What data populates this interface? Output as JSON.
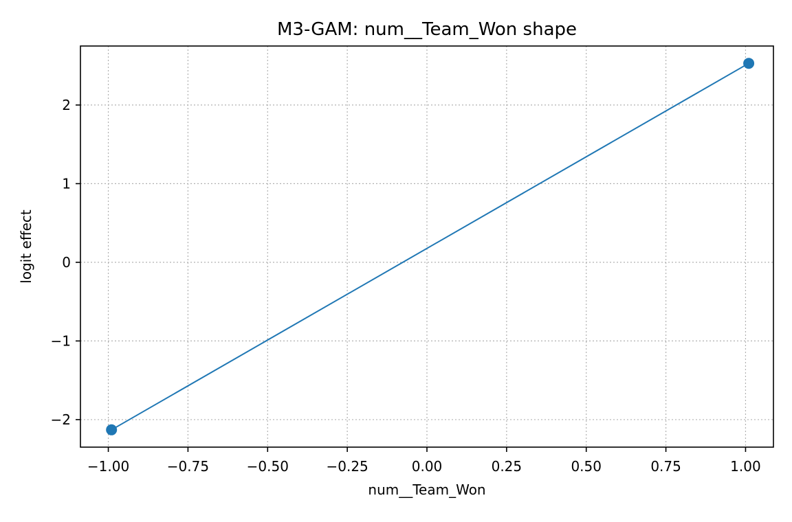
{
  "chart_data": {
    "type": "line",
    "title": "M3-GAM: num__Team_Won shape",
    "xlabel": "num__Team_Won",
    "ylabel": "logit effect",
    "xlim": [
      -1.0875,
      1.0875
    ],
    "ylim": [
      -2.35,
      2.75
    ],
    "x_ticks": [
      -1.0,
      -0.75,
      -0.5,
      -0.25,
      0.0,
      0.25,
      0.5,
      0.75,
      1.0
    ],
    "x_tick_labels": [
      "−1.00",
      "−0.75",
      "−0.50",
      "−0.25",
      "0.00",
      "0.25",
      "0.50",
      "0.75",
      "1.00"
    ],
    "y_ticks": [
      -2,
      -1,
      0,
      1,
      2
    ],
    "y_tick_labels": [
      "−2",
      "−1",
      "0",
      "1",
      "2"
    ],
    "grid": true,
    "series": [
      {
        "x": [
          -0.99,
          1.01
        ],
        "y": [
          -2.13,
          2.53
        ],
        "color": "#1f77b4",
        "marker": "circle"
      }
    ]
  }
}
